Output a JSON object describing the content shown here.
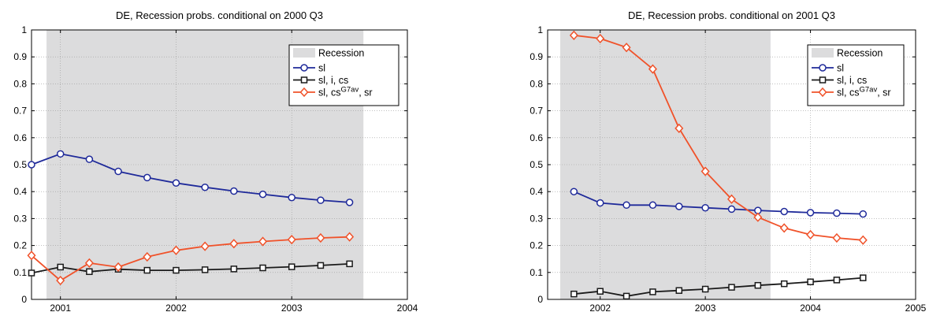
{
  "chart_data": [
    {
      "type": "line",
      "title": "DE, Recession probs. conditional on 2000 Q3",
      "xlim": [
        2000.75,
        2004.0
      ],
      "ylim": [
        0,
        1
      ],
      "xticks": [
        "2001",
        "2002",
        "2003",
        "2004"
      ],
      "xtick_values": [
        2001,
        2002,
        2003,
        2004
      ],
      "yticks": [
        "0",
        "0.1",
        "0.2",
        "0.3",
        "0.4",
        "0.5",
        "0.6",
        "0.7",
        "0.8",
        "0.9",
        "1"
      ],
      "ytick_values": [
        0,
        0.1,
        0.2,
        0.3,
        0.4,
        0.5,
        0.6,
        0.7,
        0.8,
        0.9,
        1
      ],
      "grid": true,
      "legend_position": "top-right",
      "recession": {
        "label": "Recession",
        "start": 2000.88,
        "end": 2003.62,
        "color": "#dcdcdd"
      },
      "x": [
        2000.75,
        2001.0,
        2001.25,
        2001.5,
        2001.75,
        2002.0,
        2002.25,
        2002.5,
        2002.75,
        2003.0,
        2003.25,
        2003.5
      ],
      "series": [
        {
          "name": "sl",
          "marker": "circle",
          "color": "#1f2a9a",
          "values": [
            0.5,
            0.54,
            0.52,
            0.475,
            0.452,
            0.432,
            0.416,
            0.402,
            0.39,
            0.378,
            0.368,
            0.36
          ]
        },
        {
          "name": "sl, i, cs",
          "marker": "square",
          "color": "#1a1a1a",
          "values": [
            0.098,
            0.12,
            0.103,
            0.112,
            0.108,
            0.108,
            0.11,
            0.113,
            0.117,
            0.121,
            0.126,
            0.132
          ]
        },
        {
          "name": "sl, cs",
          "name_sup": "G7av",
          "name_suffix": ", sr",
          "marker": "diamond",
          "color": "#f0522a",
          "values": [
            0.163,
            0.07,
            0.135,
            0.12,
            0.158,
            0.182,
            0.197,
            0.207,
            0.215,
            0.222,
            0.228,
            0.232
          ]
        }
      ]
    },
    {
      "type": "line",
      "title": "DE, Recession probs. conditional on 2001 Q3",
      "xlim": [
        2001.5,
        2005.0
      ],
      "ylim": [
        0,
        1
      ],
      "xticks": [
        "2002",
        "2003",
        "2004",
        "2005"
      ],
      "xtick_values": [
        2002,
        2003,
        2004,
        2005
      ],
      "yticks": [
        "0",
        "0.1",
        "0.2",
        "0.3",
        "0.4",
        "0.5",
        "0.6",
        "0.7",
        "0.8",
        "0.9",
        "1"
      ],
      "ytick_values": [
        0,
        0.1,
        0.2,
        0.3,
        0.4,
        0.5,
        0.6,
        0.7,
        0.8,
        0.9,
        1
      ],
      "grid": true,
      "legend_position": "top-right",
      "recession": {
        "label": "Recession",
        "start": 2001.62,
        "end": 2003.62,
        "color": "#dcdcdd"
      },
      "x": [
        2001.75,
        2002.0,
        2002.25,
        2002.5,
        2002.75,
        2003.0,
        2003.25,
        2003.5,
        2003.75,
        2004.0,
        2004.25,
        2004.5
      ],
      "series": [
        {
          "name": "sl",
          "marker": "circle",
          "color": "#1f2a9a",
          "values": [
            0.4,
            0.358,
            0.35,
            0.35,
            0.345,
            0.34,
            0.335,
            0.33,
            0.326,
            0.322,
            0.32,
            0.317
          ]
        },
        {
          "name": "sl, i, cs",
          "marker": "square",
          "color": "#1a1a1a",
          "values": [
            0.02,
            0.03,
            0.012,
            0.028,
            0.033,
            0.038,
            0.045,
            0.052,
            0.058,
            0.065,
            0.072,
            0.08
          ]
        },
        {
          "name": "sl, cs",
          "name_sup": "G7av",
          "name_suffix": ", sr",
          "marker": "diamond",
          "color": "#f0522a",
          "values": [
            0.98,
            0.968,
            0.935,
            0.855,
            0.635,
            0.475,
            0.372,
            0.305,
            0.265,
            0.24,
            0.228,
            0.22
          ]
        }
      ]
    }
  ]
}
